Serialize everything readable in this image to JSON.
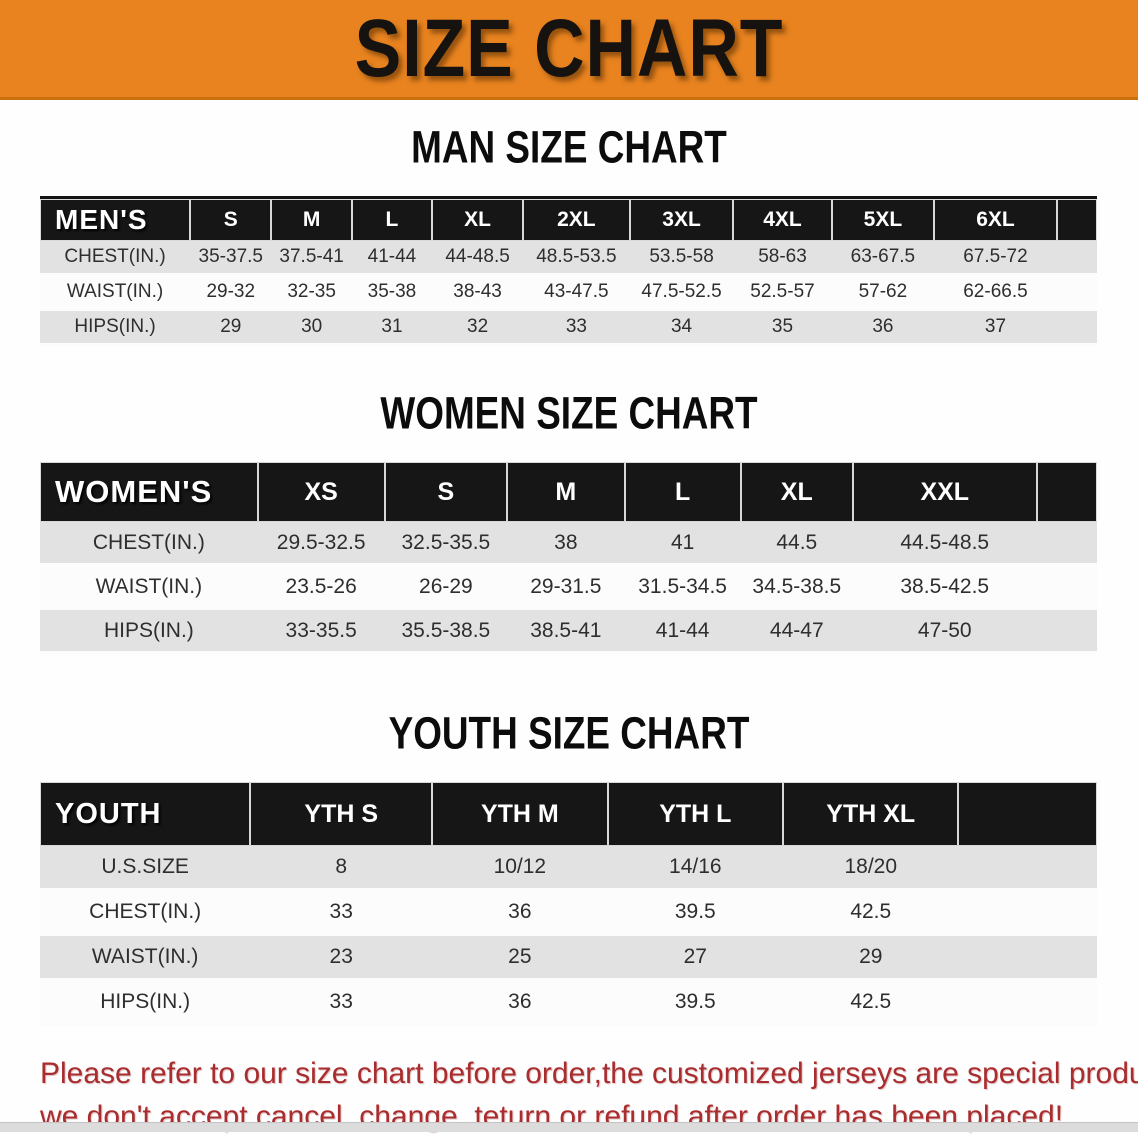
{
  "banner": {
    "title": "SIZE CHART"
  },
  "sections": [
    {
      "heading": "MAN SIZE CHART",
      "table": {
        "corner_label": "MEN'S",
        "columns": [
          "S",
          "M",
          "L",
          "XL",
          "2XL",
          "3XL",
          "4XL",
          "5XL",
          "6XL"
        ],
        "rows": [
          {
            "label": "CHEST(IN.)",
            "values": [
              "35-37.5",
              "37.5-41",
              "41-44",
              "44-48.5",
              "48.5-53.5",
              "53.5-58",
              "58-63",
              "63-67.5",
              "67.5-72"
            ]
          },
          {
            "label": "WAIST(IN.)",
            "values": [
              "29-32",
              "32-35",
              "35-38",
              "38-43",
              "43-47.5",
              "47.5-52.5",
              "52.5-57",
              "57-62",
              "62-66.5"
            ]
          },
          {
            "label": "HIPS(IN.)",
            "values": [
              "29",
              "30",
              "31",
              "32",
              "33",
              "34",
              "35",
              "36",
              "37"
            ]
          }
        ]
      }
    },
    {
      "heading": "WOMEN SIZE CHART",
      "table": {
        "corner_label": "WOMEN'S",
        "columns": [
          "XS",
          "S",
          "M",
          "L",
          "XL",
          "XXL"
        ],
        "rows": [
          {
            "label": "CHEST(IN.)",
            "values": [
              "29.5-32.5",
              "32.5-35.5",
              "38",
              "41",
              "44.5",
              "44.5-48.5"
            ]
          },
          {
            "label": "WAIST(IN.)",
            "values": [
              "23.5-26",
              "26-29",
              "29-31.5",
              "31.5-34.5",
              "34.5-38.5",
              "38.5-42.5"
            ]
          },
          {
            "label": "HIPS(IN.)",
            "values": [
              "33-35.5",
              "35.5-38.5",
              "38.5-41",
              "41-44",
              "44-47",
              "47-50"
            ]
          }
        ]
      }
    },
    {
      "heading": "YOUTH SIZE CHART",
      "table": {
        "corner_label": "YOUTH",
        "columns": [
          "YTH S",
          "YTH M",
          "YTH L",
          "YTH XL"
        ],
        "rows": [
          {
            "label": "U.S.SIZE",
            "values": [
              "8",
              "10/12",
              "14/16",
              "18/20"
            ]
          },
          {
            "label": "CHEST(IN.)",
            "values": [
              "33",
              "36",
              "39.5",
              "42.5"
            ]
          },
          {
            "label": "WAIST(IN.)",
            "values": [
              "23",
              "25",
              "27",
              "29"
            ]
          },
          {
            "label": "HIPS(IN.)",
            "values": [
              "33",
              "36",
              "39.5",
              "42.5"
            ]
          }
        ]
      }
    }
  ],
  "footer": {
    "line1": "Please refer to our size chart before order,the customized jerseys are special products,",
    "line2": "we don't accept cancel, change, teturn or refund after order has been placed!"
  },
  "colors": {
    "page_bg": "#fefefe",
    "banner_bg": "#e8831f",
    "banner_edge": "#c9700f",
    "header_bg": "#161616",
    "header_text": "#ffffff",
    "row_gray": "#e2e2e2",
    "row_white": "#fcfcfc",
    "text_dark": "#2e2e2e",
    "footer_red": "#a92c2e",
    "strip_gray": "#dcdcdc"
  }
}
